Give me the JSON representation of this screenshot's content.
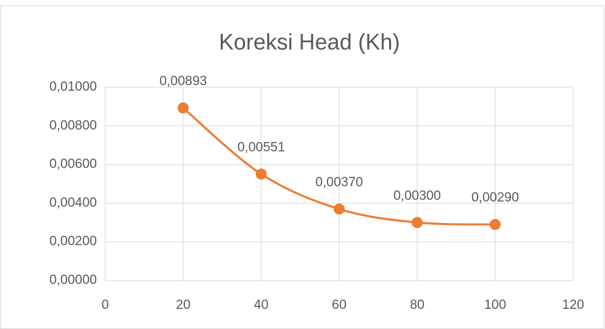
{
  "chart_data": {
    "type": "line",
    "title": "Koreksi Head (Kh)",
    "x": [
      20,
      40,
      60,
      80,
      100
    ],
    "values": [
      0.00893,
      0.00551,
      0.0037,
      0.003,
      0.0029
    ],
    "value_labels": [
      "0,00893",
      "0,00551",
      "0,00370",
      "0,00300",
      "0,00290"
    ],
    "color": "#ed7d31",
    "smooth": true,
    "grid": true,
    "xlim": [
      0,
      120
    ],
    "xticks": [
      0,
      20,
      40,
      60,
      80,
      100,
      120
    ],
    "ylim": [
      0,
      0.01
    ],
    "yticks": [
      {
        "value": 0,
        "label": "0,00000"
      },
      {
        "value": 0.002,
        "label": "0,00200"
      },
      {
        "value": 0.004,
        "label": "0,00400"
      },
      {
        "value": 0.006,
        "label": "0,00600"
      },
      {
        "value": 0.008,
        "label": "0,00800"
      },
      {
        "value": 0.01,
        "label": "0,01000"
      }
    ]
  }
}
